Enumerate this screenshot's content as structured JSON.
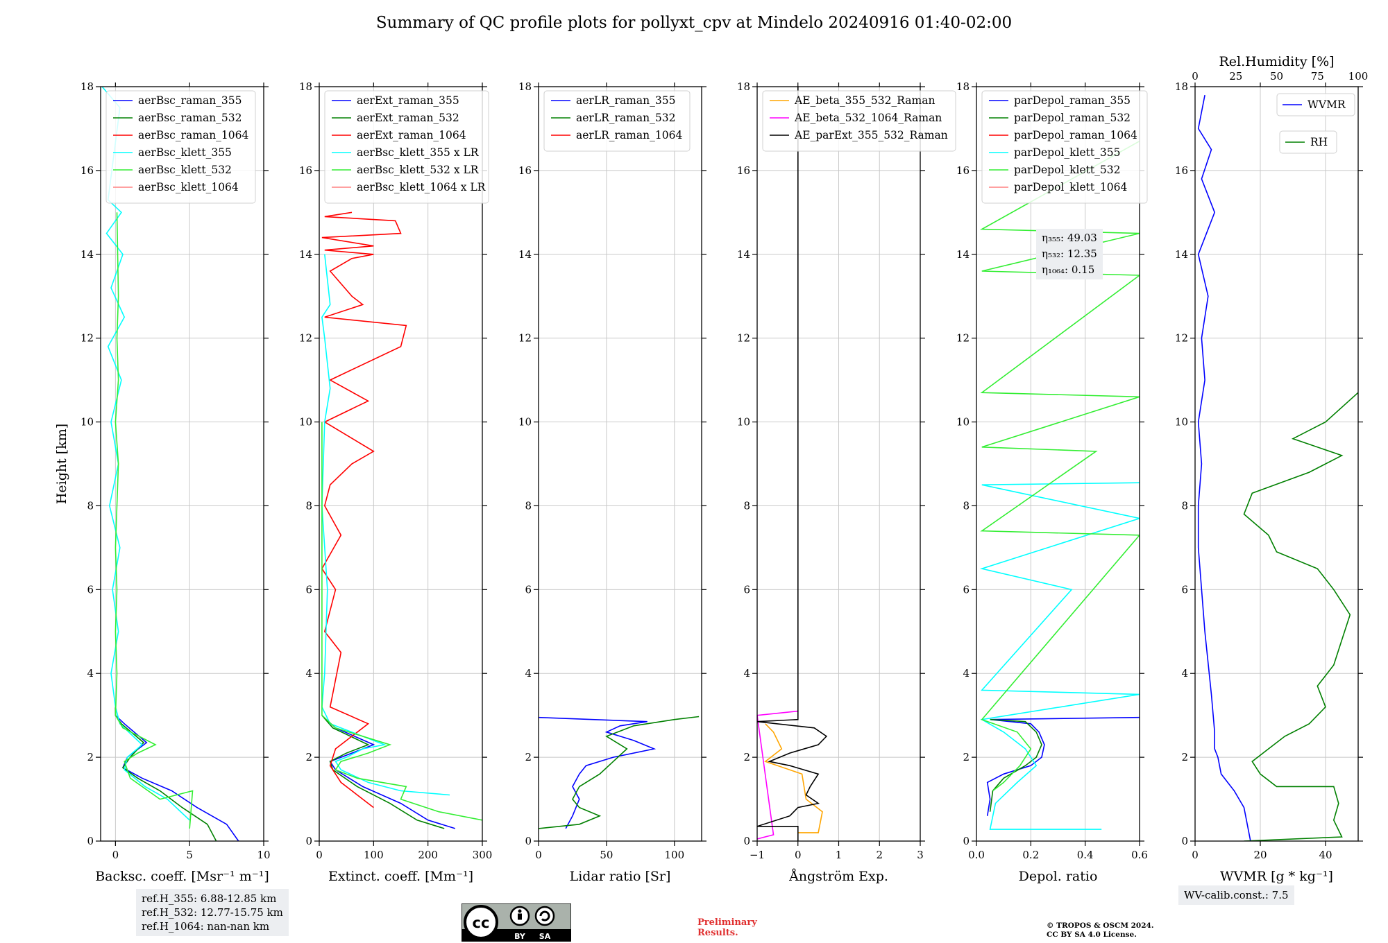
{
  "title": "Summary of QC profile plots for pollyxt_cpv at Mindelo 20240916 01:40-02:00",
  "chart_data": [
    {
      "type": "line",
      "id": "bsc",
      "xlabel": "Backsc. coeff. [Msr⁻¹ m⁻¹]",
      "ylabel": "Height [km]",
      "xlim": [
        -1,
        10
      ],
      "ylim": [
        0,
        18
      ],
      "xticks": [
        0,
        5,
        10
      ],
      "yticks": [
        0,
        2,
        4,
        6,
        8,
        10,
        12,
        14,
        16,
        18
      ],
      "legend": "upper-left",
      "series": [
        {
          "name": "aerBsc_raman_355",
          "color": "#0000ff",
          "x": [
            8.3,
            7.5,
            5.5,
            3.8,
            1.8,
            0.5,
            0.8,
            2.1,
            0.6,
            0.0,
            0.0
          ],
          "y": [
            0.0,
            0.4,
            0.8,
            1.2,
            1.5,
            1.75,
            2.0,
            2.35,
            2.8,
            3.0,
            3.3
          ]
        },
        {
          "name": "aerBsc_raman_532",
          "color": "#008000",
          "x": [
            6.8,
            6.2,
            4.5,
            3.0,
            1.5,
            0.5,
            1.0,
            1.9,
            0.4,
            0.0,
            0.0
          ],
          "y": [
            0.0,
            0.4,
            0.8,
            1.2,
            1.5,
            1.75,
            2.0,
            2.35,
            2.8,
            3.0,
            3.3
          ]
        },
        {
          "name": "aerBsc_raman_1064",
          "color": "#ff0000",
          "x": [],
          "y": []
        },
        {
          "name": "aerBsc_klett_355",
          "color": "#00ffff",
          "x": [
            5.0,
            3.5,
            2.0,
            0.6,
            0.8,
            1.8,
            0.3,
            0.0,
            -0.3,
            0.2,
            -0.2,
            0.3,
            -0.4,
            0.2,
            -0.3,
            0.4,
            -0.5,
            0.6,
            -0.3,
            0.5,
            -0.6,
            0.4,
            -0.5,
            0.3,
            -0.9
          ],
          "y": [
            0.5,
            1.0,
            1.3,
            1.7,
            2.0,
            2.3,
            2.8,
            3.2,
            4.0,
            5.0,
            6.0,
            7.0,
            8.0,
            9.0,
            10.0,
            11.0,
            11.8,
            12.5,
            13.2,
            14.0,
            14.5,
            15.0,
            15.3,
            17.5,
            18.0
          ]
        },
        {
          "name": "aerBsc_klett_532",
          "color": "#33ee33",
          "x": [
            5.0,
            5.2,
            3.0,
            1.0,
            0.6,
            1.5,
            2.7,
            0.5,
            0.0,
            0.1,
            0.0,
            0.1,
            0.0,
            0.1,
            0.2,
            0.0,
            0.2,
            0.1,
            0.2,
            0.1
          ],
          "y": [
            0.3,
            1.2,
            1.0,
            1.5,
            1.9,
            2.1,
            2.3,
            2.7,
            3.0,
            4.0,
            5.0,
            6.0,
            7.0,
            8.0,
            9.0,
            10.0,
            11.0,
            12.0,
            13.0,
            15.0
          ]
        },
        {
          "name": "aerBsc_klett_1064",
          "color": "#ff8080",
          "x": [],
          "y": []
        }
      ],
      "annotation": [
        "ref.H_355: 6.88-12.85 km",
        "ref.H_532: 12.77-15.75 km",
        "ref.H_1064: nan-nan km"
      ]
    },
    {
      "type": "line",
      "id": "ext",
      "xlabel": "Extinct. coeff. [Mm⁻¹]",
      "xlim": [
        0,
        300
      ],
      "ylim": [
        0,
        18
      ],
      "xticks": [
        0,
        100,
        200,
        300
      ],
      "legend": "upper-left",
      "series": [
        {
          "name": "aerExt_raman_355",
          "color": "#0000ff",
          "x": [
            250,
            200,
            150,
            80,
            30,
            20,
            60,
            100,
            30,
            5
          ],
          "y": [
            0.3,
            0.5,
            0.9,
            1.3,
            1.7,
            1.9,
            2.1,
            2.3,
            2.7,
            3.0
          ]
        },
        {
          "name": "aerExt_raman_532",
          "color": "#008000",
          "x": [
            230,
            180,
            130,
            70,
            25,
            20,
            50,
            90,
            25,
            5
          ],
          "y": [
            0.3,
            0.5,
            0.9,
            1.3,
            1.7,
            1.9,
            2.1,
            2.3,
            2.7,
            3.0
          ]
        },
        {
          "name": "aerExt_raman_1064",
          "color": "#ff0000",
          "x": [
            100,
            80,
            40,
            20,
            30,
            60,
            90,
            20,
            40,
            10,
            30,
            5,
            40,
            10,
            20,
            60,
            100,
            10,
            90,
            20,
            150,
            160,
            10,
            80,
            60,
            20,
            60,
            100,
            10,
            100,
            5,
            150,
            140,
            10,
            60
          ],
          "y": [
            0.8,
            1.0,
            1.4,
            1.8,
            2.2,
            2.5,
            2.8,
            3.2,
            4.5,
            5.0,
            6.0,
            6.5,
            7.3,
            8.0,
            8.5,
            9.0,
            9.3,
            10.0,
            10.5,
            11.0,
            11.8,
            12.3,
            12.5,
            12.8,
            13.0,
            13.6,
            13.9,
            14.0,
            14.1,
            14.2,
            14.4,
            14.5,
            14.8,
            14.9,
            15.0
          ]
        },
        {
          "name": "aerBsc_klett_355 x LR",
          "color": "#00ffff",
          "x": [
            240,
            150,
            90,
            40,
            30,
            50,
            80,
            120,
            20,
            5,
            10,
            15,
            5,
            10,
            20,
            10,
            5,
            20,
            10
          ],
          "y": [
            1.1,
            1.2,
            1.4,
            1.7,
            1.9,
            2.0,
            2.2,
            2.3,
            2.8,
            3.2,
            4.0,
            6.0,
            8.0,
            10.0,
            10.8,
            12.0,
            12.5,
            12.8,
            14.0
          ]
        },
        {
          "name": "aerBsc_klett_532 x LR",
          "color": "#33ee33",
          "x": [
            300,
            220,
            150,
            160,
            70,
            30,
            40,
            90,
            130,
            30,
            5,
            5,
            5
          ],
          "y": [
            0.5,
            0.7,
            1.0,
            1.3,
            1.5,
            1.7,
            1.9,
            2.1,
            2.3,
            2.7,
            3.0,
            6.0,
            10.0
          ]
        },
        {
          "name": "aerBsc_klett_1064 x LR",
          "color": "#ff8080",
          "x": [],
          "y": []
        }
      ]
    },
    {
      "type": "line",
      "id": "lr",
      "xlabel": "Lidar ratio [Sr]",
      "xlim": [
        0,
        120
      ],
      "ylim": [
        0,
        18
      ],
      "xticks": [
        0,
        50,
        100
      ],
      "legend": "upper-left",
      "series": [
        {
          "name": "aerLR_raman_355",
          "color": "#0000ff",
          "x": [
            20,
            25,
            30,
            25,
            30,
            35,
            55,
            85,
            70,
            50,
            60,
            80,
            0
          ],
          "y": [
            0.3,
            0.6,
            1.0,
            1.3,
            1.6,
            1.8,
            2.0,
            2.2,
            2.4,
            2.6,
            2.75,
            2.85,
            2.95
          ]
        },
        {
          "name": "aerLR_raman_532",
          "color": "#008000",
          "x": [
            0,
            30,
            45,
            30,
            25,
            30,
            45,
            55,
            65,
            50,
            70,
            100,
            118
          ],
          "y": [
            0.3,
            0.4,
            0.6,
            0.8,
            1.0,
            1.3,
            1.6,
            1.9,
            2.2,
            2.5,
            2.75,
            2.9,
            2.97
          ]
        },
        {
          "name": "aerLR_raman_1064",
          "color": "#ff0000",
          "x": [],
          "y": []
        }
      ]
    },
    {
      "type": "line",
      "id": "ae",
      "xlabel": "Ångström Exp.",
      "xlim": [
        -1,
        3
      ],
      "ylim": [
        0,
        18
      ],
      "xticks": [
        -1,
        0,
        1,
        2,
        3
      ],
      "legend": "upper-left",
      "series": [
        {
          "name": "AE_beta_355_532_Raman",
          "color": "#ffa500",
          "x": [
            0.0,
            0.5,
            0.6,
            0.2,
            0.1,
            -0.5,
            -0.8,
            -0.4,
            -0.6,
            -0.8
          ],
          "y": [
            0.2,
            0.2,
            0.7,
            1.0,
            1.6,
            1.8,
            1.9,
            2.2,
            2.6,
            2.8
          ]
        },
        {
          "name": "AE_beta_532_1064_Raman",
          "color": "#ff00ff",
          "x": [
            -1.0,
            -0.6,
            -1.0,
            0.0
          ],
          "y": [
            0.05,
            0.15,
            3.0,
            3.1
          ]
        },
        {
          "name": "AE_parExt_355_532_Raman",
          "color": "#000000",
          "x": [
            0.0,
            0.0,
            -1.0,
            -0.2,
            0.0,
            0.5,
            0.2,
            0.3,
            0.5,
            -0.2,
            -0.7,
            -0.2,
            0.5,
            0.7,
            0.4,
            -1.0,
            0.0,
            0.0
          ],
          "y": [
            0.0,
            0.35,
            0.35,
            0.6,
            0.8,
            0.9,
            1.1,
            1.3,
            1.6,
            1.8,
            1.9,
            2.1,
            2.3,
            2.5,
            2.7,
            2.85,
            2.9,
            18.0
          ]
        }
      ]
    },
    {
      "type": "line",
      "id": "depol",
      "xlabel": "Depol. ratio",
      "xlim": [
        0.0,
        0.6
      ],
      "ylim": [
        0,
        18
      ],
      "xticks": [
        0.0,
        0.2,
        0.4,
        0.6
      ],
      "legend": "upper-left",
      "series": [
        {
          "name": "parDepol_raman_355",
          "color": "#0000ff",
          "x": [
            0.04,
            0.05,
            0.04,
            0.1,
            0.2,
            0.24,
            0.25,
            0.23,
            0.2,
            0.05,
            0.6
          ],
          "y": [
            0.6,
            1.0,
            1.4,
            1.6,
            1.8,
            2.0,
            2.3,
            2.6,
            2.8,
            2.9,
            2.95
          ]
        },
        {
          "name": "parDepol_raman_532",
          "color": "#008000",
          "x": [
            0.05,
            0.06,
            0.1,
            0.18,
            0.22,
            0.24,
            0.22,
            0.18,
            0.05
          ],
          "y": [
            0.7,
            1.2,
            1.5,
            1.8,
            2.0,
            2.3,
            2.6,
            2.85,
            2.9
          ]
        },
        {
          "name": "parDepol_raman_1064",
          "color": "#ff0000",
          "x": [],
          "y": []
        },
        {
          "name": "parDepol_klett_355",
          "color": "#00ffff",
          "x": [
            0.46,
            0.05,
            0.07,
            0.15,
            0.22,
            0.18,
            0.1,
            0.02,
            0.6,
            0.02,
            0.35,
            0.02,
            0.6,
            0.02,
            0.6
          ],
          "y": [
            0.28,
            0.28,
            0.9,
            1.4,
            1.8,
            2.2,
            2.6,
            2.9,
            3.5,
            3.6,
            6.0,
            6.5,
            7.7,
            8.5,
            8.55
          ]
        },
        {
          "name": "parDepol_klett_532",
          "color": "#33ee33",
          "x": [
            0.06,
            0.1,
            0.16,
            0.2,
            0.15,
            0.02,
            0.6,
            0.02,
            0.44,
            0.02,
            0.6,
            0.02,
            0.6,
            0.02,
            0.6,
            0.02,
            0.6
          ],
          "y": [
            1.2,
            1.4,
            1.8,
            2.2,
            2.6,
            2.9,
            7.3,
            7.4,
            9.3,
            9.4,
            10.6,
            10.7,
            13.5,
            13.6,
            14.5,
            14.6,
            16.7
          ]
        },
        {
          "name": "parDepol_klett_1064",
          "color": "#ff8080",
          "x": [],
          "y": []
        }
      ],
      "annotation": [
        "η₃₅₅: 49.03",
        "η₅₃₂: 12.35",
        "η₁₀₆₄: 0.15"
      ]
    },
    {
      "type": "line",
      "id": "wv",
      "xlabel": "WVMR [g * kg⁻¹]",
      "xlabel_top": "Rel.Humidity [%]",
      "xlim": [
        0,
        50
      ],
      "xlim_top": [
        0,
        100
      ],
      "ylim": [
        0,
        18
      ],
      "xticks": [
        0,
        20,
        40
      ],
      "xticks_top": [
        0,
        25,
        50,
        75,
        100
      ],
      "legend": "upper-right",
      "series": [
        {
          "name": "WVMR",
          "color": "#0000ff",
          "axis": "bottom",
          "x": [
            17,
            16,
            15,
            12,
            10,
            8,
            7,
            6,
            6,
            5,
            3,
            2,
            1,
            1,
            2,
            1,
            3,
            2,
            4,
            1,
            6,
            2,
            5,
            1,
            3
          ],
          "y": [
            0.0,
            0.4,
            0.8,
            1.2,
            1.4,
            1.6,
            2.0,
            2.2,
            2.6,
            3.5,
            5.0,
            6.0,
            7.0,
            8.0,
            9.0,
            10.0,
            11.0,
            12.0,
            13.0,
            14.0,
            15.0,
            15.8,
            16.5,
            17.0,
            17.8
          ]
        },
        {
          "name": "RH",
          "color": "#008000",
          "axis": "top",
          "x": [
            30,
            90,
            85,
            88,
            85,
            50,
            40,
            35,
            45,
            55,
            70,
            80,
            75,
            85,
            90,
            95,
            85,
            75,
            50,
            45,
            30,
            35,
            70,
            90,
            60,
            80,
            100
          ],
          "y": [
            0.0,
            0.1,
            0.5,
            0.9,
            1.3,
            1.3,
            1.6,
            1.9,
            2.2,
            2.5,
            2.8,
            3.2,
            3.7,
            4.2,
            4.8,
            5.4,
            6.0,
            6.5,
            6.9,
            7.3,
            7.8,
            8.3,
            8.8,
            9.2,
            9.6,
            10.0,
            10.7
          ]
        }
      ],
      "annotation": [
        "WV-calib.const.: 7.5"
      ]
    }
  ],
  "footer": {
    "license_badge": {
      "by": "BY",
      "sa": "SA",
      "cc": "cc"
    },
    "preliminary_line1": "Preliminary",
    "preliminary_line2": "Results.",
    "copyright_line1": "© TROPOS & OSCM 2024.",
    "copyright_line2": "CC BY SA 4.0 License."
  }
}
